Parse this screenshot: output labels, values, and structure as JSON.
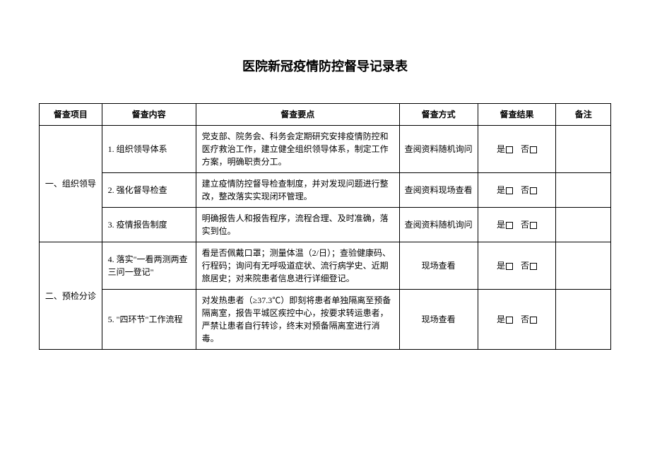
{
  "title": "医院新冠疫情防控督导记录表",
  "columns": {
    "project": "督查项目",
    "content": "督查内容",
    "points": "督查要点",
    "method": "督查方式",
    "result": "督查结果",
    "remark": "备注"
  },
  "result_options": {
    "yes": "是",
    "no": "否"
  },
  "groups": [
    {
      "project": "一、组织领导",
      "rows": [
        {
          "content": "1. 组织领导体系",
          "points": "党支部、院务会、科务会定期研究安排疫情防控和医疗救治工作，建立健全组织领导体系，制定工作方案，明确职责分工。",
          "method": "查阅资料随机询问"
        },
        {
          "content": "2. 强化督导检查",
          "points": "建立疫情防控督导检查制度，并对发现问题进行整改，整改落实实现闭环管理。",
          "method": "查阅资料现场查看"
        },
        {
          "content": "3. 疫情报告制度",
          "points": "明确报告人和报告程序，流程合理、及时准确，落实到位。",
          "method": "查阅资料随机询问"
        }
      ]
    },
    {
      "project": "二、预检分诊",
      "rows": [
        {
          "content": "4. 落实\"一看两测两查三问一登记\"",
          "points": "看是否佩戴口罩；测量体温（2/日）；查验健康码、行程码；询问有无呼吸道症状、流行病学史、近期旅居史；对来院患者信息进行详细登记。",
          "method": "现场查看"
        },
        {
          "content": "5. \"四环节\"工作流程",
          "points": "对发热患者（≥37.3℃）即刻将患者单独隔离至预备隔离室，报告平城区疾控中心，按要求转运患者，严禁让患者自行转诊，终末对预备隔离室进行消毒。",
          "method": "现场查看"
        }
      ]
    }
  ],
  "style": {
    "border_color": "#000000",
    "background_color": "#ffffff",
    "text_color": "#000000",
    "title_fontsize": 18,
    "cell_fontsize": 12,
    "col_widths": {
      "project": 80,
      "content": 120,
      "points": 260,
      "method": 100,
      "result": 100,
      "remark": 70
    }
  }
}
